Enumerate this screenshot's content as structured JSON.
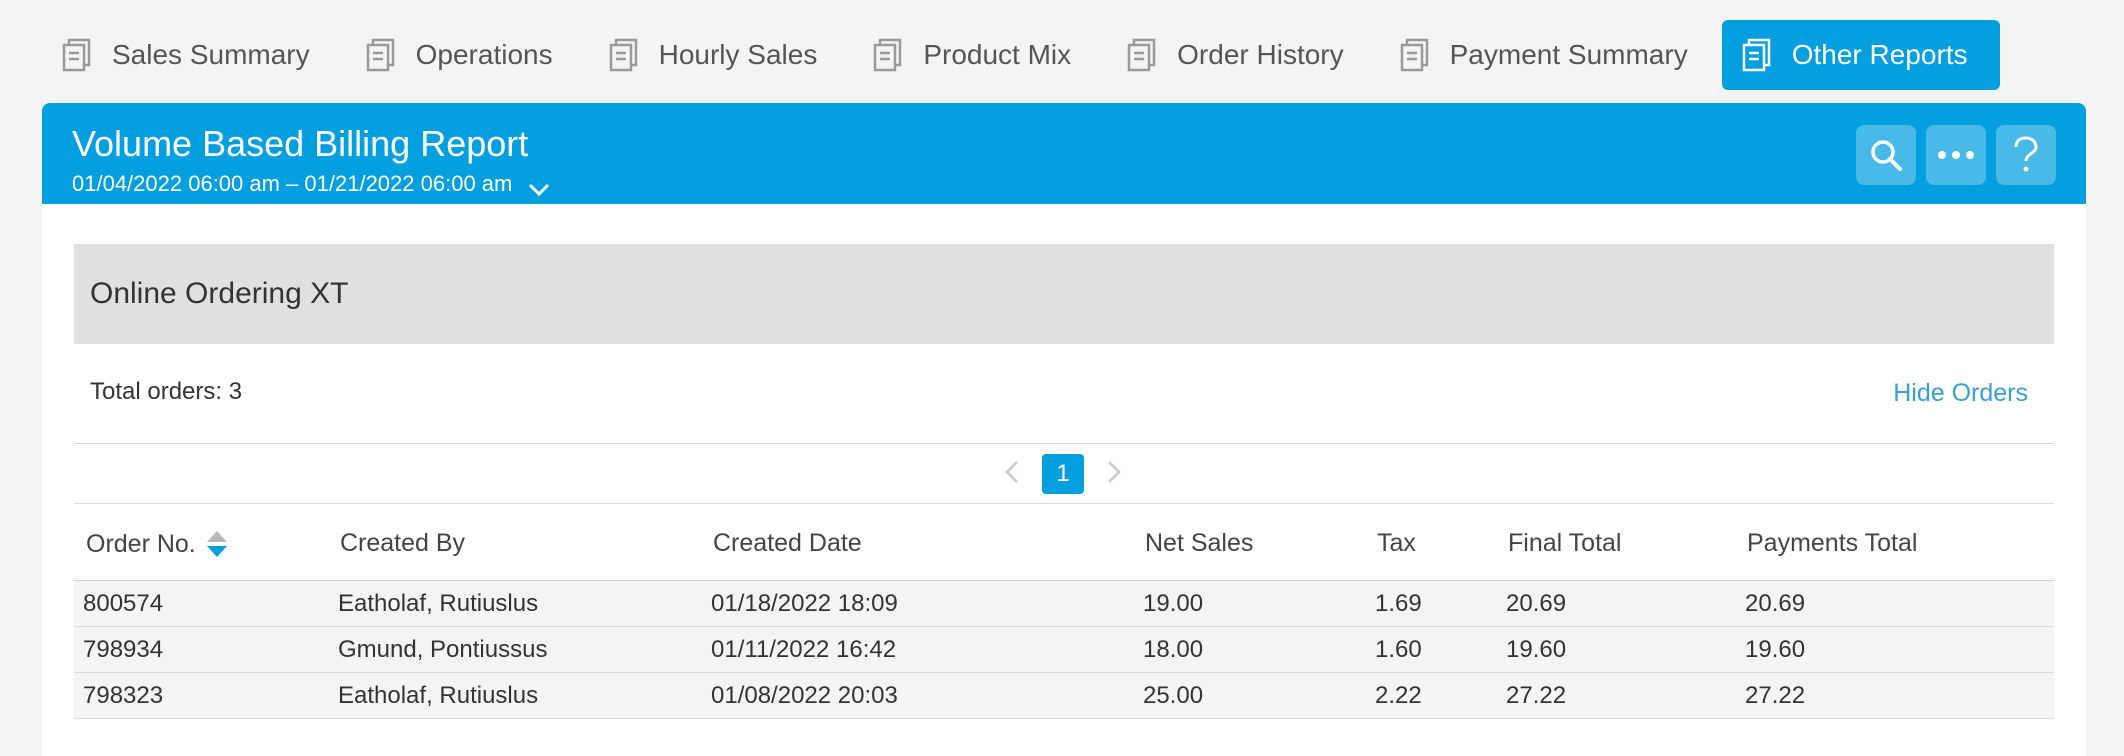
{
  "tabs": [
    {
      "label": "Sales Summary",
      "active": false
    },
    {
      "label": "Operations",
      "active": false
    },
    {
      "label": "Hourly Sales",
      "active": false
    },
    {
      "label": "Product Mix",
      "active": false
    },
    {
      "label": "Order History",
      "active": false
    },
    {
      "label": "Payment Summary",
      "active": false
    },
    {
      "label": "Other Reports",
      "active": true
    }
  ],
  "header": {
    "title": "Volume Based Billing Report",
    "date_range": "01/04/2022 06:00 am – 01/21/2022 06:00 am",
    "buttons": [
      "search-icon",
      "more-icon",
      "help-icon"
    ]
  },
  "section": {
    "title": "Online Ordering XT",
    "total_orders": "Total orders: 3",
    "hide_orders": "Hide Orders"
  },
  "pagination": {
    "current": "1"
  },
  "table": {
    "columns": [
      "Order No.",
      "Created By",
      "Created Date",
      "Net Sales",
      "Tax",
      "Final Total",
      "Payments Total"
    ],
    "rows": [
      [
        "800574",
        "Eatholaf, Rutiuslus",
        "01/18/2022 18:09",
        "19.00",
        "1.69",
        "20.69",
        "20.69"
      ],
      [
        "798934",
        "Gmund, Pontiussus",
        "01/11/2022 16:42",
        "18.00",
        "1.60",
        "19.60",
        "19.60"
      ],
      [
        "798323",
        "Eatholaf, Rutiuslus",
        "01/08/2022 20:03",
        "25.00",
        "2.22",
        "27.22",
        "27.22"
      ]
    ]
  },
  "colors": {
    "accent": "#049fdf",
    "link": "#3a9fd0",
    "section_bg": "#e0e0e0"
  }
}
